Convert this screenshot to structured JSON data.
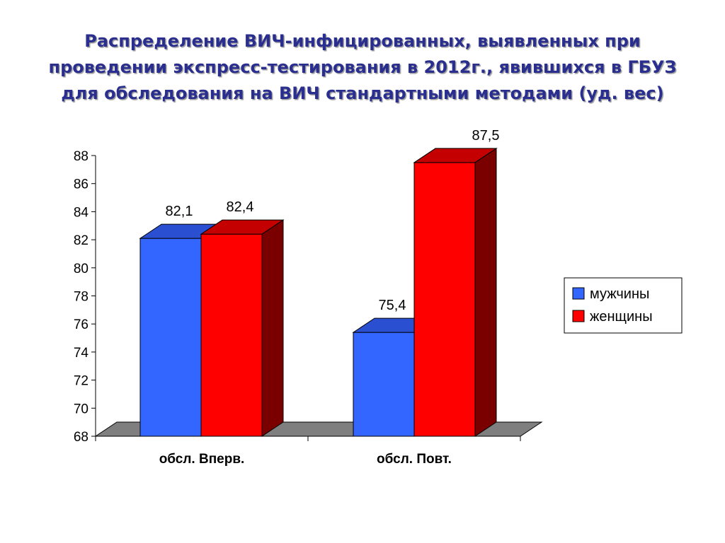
{
  "title": {
    "line1": "Распределение ВИЧ-инфицированных, выявленных при",
    "line2": "проведении экспресс-тестирования в 2012г., явившихся в ГБУЗ",
    "line3": "для обследования на ВИЧ стандартными методами (уд. вес)"
  },
  "chart_data": {
    "type": "bar",
    "style": "3d-clustered",
    "categories": [
      "обсл. Вперв.",
      "обсл. Повт."
    ],
    "series": [
      {
        "name": "мужчины",
        "values": [
          82.1,
          75.4
        ],
        "labels": [
          "82,1",
          "75,4"
        ],
        "color": "#3366ff",
        "top_color": "#2a4fd0",
        "side_color": "#1c37a0"
      },
      {
        "name": "женщины",
        "values": [
          82.4,
          87.5
        ],
        "labels": [
          "82,4",
          "87,5"
        ],
        "color": "#ff0000",
        "top_color": "#c40000",
        "side_color": "#7a0000"
      }
    ],
    "ylim": [
      68,
      88
    ],
    "yticks": [
      "68",
      "70",
      "72",
      "74",
      "76",
      "78",
      "80",
      "82",
      "84",
      "86",
      "88"
    ],
    "legend_position": "right",
    "floor_color": "#7f7f7f",
    "grid": false
  }
}
